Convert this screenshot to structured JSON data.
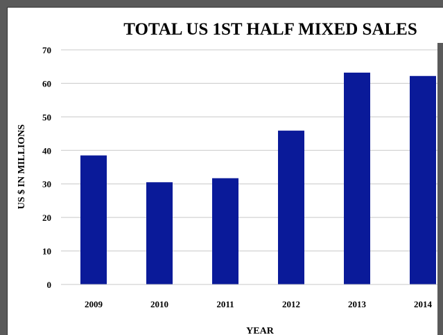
{
  "chart_data": {
    "type": "bar",
    "title": "TOTAL US 1ST HALF MIXED SALES",
    "xlabel": "YEAR",
    "ylabel": "US $ IN MILLIONS",
    "categories": [
      "2009",
      "2010",
      "2011",
      "2012",
      "2013",
      "2014"
    ],
    "values": [
      38.5,
      30.5,
      31.7,
      45.9,
      63.2,
      62.2
    ],
    "ylim": [
      0,
      70
    ],
    "yticks": [
      0,
      10,
      20,
      30,
      40,
      50,
      60,
      70
    ],
    "grid": true,
    "legend": "none",
    "bar_color": "#0a1a99",
    "grid_color": "#c8c8c8"
  }
}
